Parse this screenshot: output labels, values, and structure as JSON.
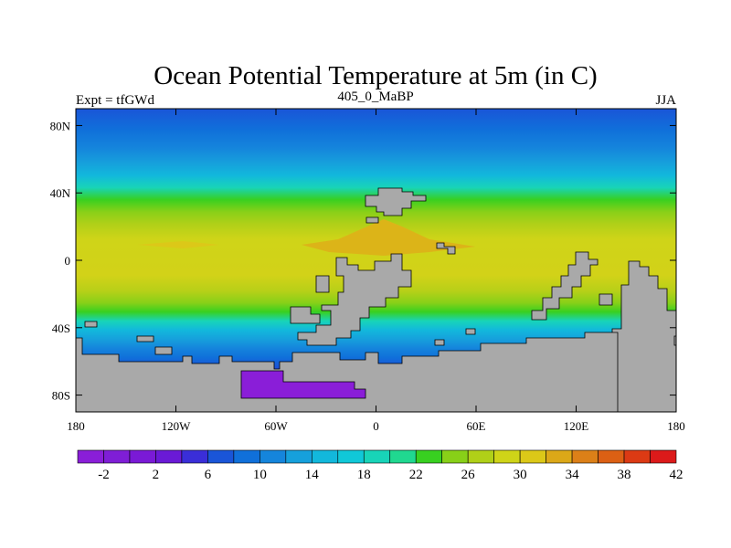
{
  "title": "Ocean Potential Temperature at 5m (in C)",
  "left_subtitle": "Expt = tfGWd",
  "center_subtitle": "405_0_MaBP",
  "right_subtitle": "JJA",
  "map": {
    "lon_range": [
      -180,
      180
    ],
    "lat_range": [
      -90,
      90
    ],
    "y_ticks": [
      {
        "lat": 80,
        "label": "80N"
      },
      {
        "lat": 40,
        "label": "40N"
      },
      {
        "lat": 0,
        "label": "0"
      },
      {
        "lat": -40,
        "label": "40S"
      },
      {
        "lat": -80,
        "label": "80S"
      }
    ],
    "x_ticks": [
      {
        "lon": -180,
        "label": "180"
      },
      {
        "lon": -120,
        "label": "120W"
      },
      {
        "lon": -60,
        "label": "60W"
      },
      {
        "lon": 0,
        "label": "0"
      },
      {
        "lon": 60,
        "label": "60E"
      },
      {
        "lon": 120,
        "label": "120E"
      },
      {
        "lon": 180,
        "label": "180"
      }
    ],
    "land_color": "#a9a9a9"
  },
  "colorbar": {
    "colors": [
      "#8a1ed8",
      "#7f1ed6",
      "#7a1ad6",
      "#6a1ad6",
      "#3a2ed8",
      "#1a55d8",
      "#1070da",
      "#1585dc",
      "#16a0dc",
      "#12b8dc",
      "#10c8d8",
      "#18d4b8",
      "#20d890",
      "#38d020",
      "#88d018",
      "#b0d018",
      "#cfd418",
      "#dcc818",
      "#dca818",
      "#dc8018",
      "#dc6014",
      "#dc3a14",
      "#dc1a1a"
    ],
    "labels": [
      {
        "index": 1,
        "text": "-2"
      },
      {
        "index": 3,
        "text": "2"
      },
      {
        "index": 5,
        "text": "6"
      },
      {
        "index": 7,
        "text": "10"
      },
      {
        "index": 9,
        "text": "14"
      },
      {
        "index": 11,
        "text": "18"
      },
      {
        "index": 13,
        "text": "22"
      },
      {
        "index": 15,
        "text": "26"
      },
      {
        "index": 17,
        "text": "30"
      },
      {
        "index": 19,
        "text": "34"
      },
      {
        "index": 21,
        "text": "38"
      },
      {
        "index": 23,
        "text": "42"
      }
    ]
  }
}
